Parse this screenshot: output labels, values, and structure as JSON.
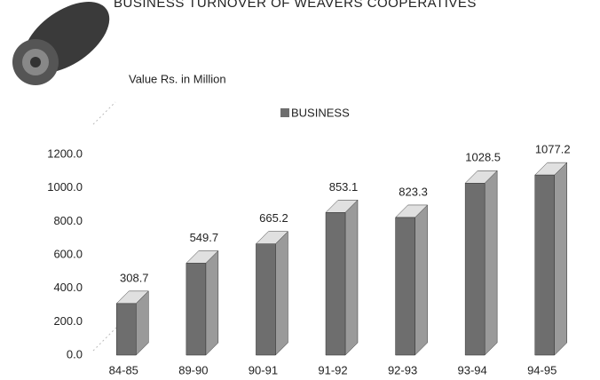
{
  "chart_data": {
    "type": "bar3d",
    "title": "BUSINESS TURNOVER OF WEAVERS COOPERATIVES",
    "y_label": "Value Rs. in Million",
    "categories": [
      "84-85",
      "89-90",
      "90-91",
      "91-92",
      "92-93",
      "93-94",
      "94-95"
    ],
    "series": [
      {
        "name": "BUSINESS",
        "color": "#6e6e6e",
        "values": [
          308.7,
          549.7,
          665.2,
          853.1,
          823.3,
          1028.5,
          1077.2
        ]
      }
    ],
    "ylim": [
      0,
      1200
    ],
    "yticks": [
      {
        "value": 0,
        "label": "0.0"
      },
      {
        "value": 200,
        "label": "200.0"
      },
      {
        "value": 400,
        "label": "400.0"
      },
      {
        "value": 600,
        "label": "600.0"
      },
      {
        "value": 800,
        "label": "800.0"
      },
      {
        "value": 1000,
        "label": "1000.0"
      },
      {
        "value": 1200,
        "label": "1200.0"
      }
    ],
    "grid": false
  }
}
